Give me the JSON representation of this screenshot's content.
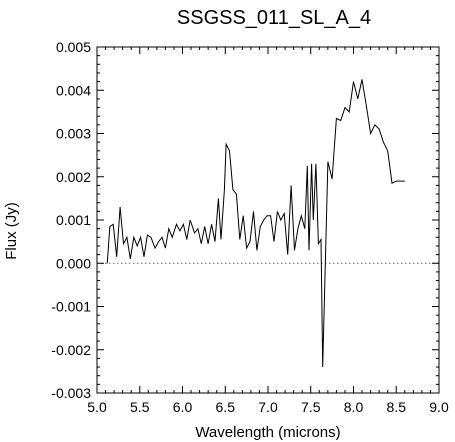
{
  "chart_data": {
    "type": "line",
    "title": "SSGSS_011_SL_A_4",
    "xlabel": "Wavelength (microns)",
    "ylabel": "Flux (Jy)",
    "xlim": [
      5.0,
      9.0
    ],
    "ylim": [
      -0.003,
      0.005
    ],
    "x_ticks": [
      "5.0",
      "5.5",
      "6.0",
      "6.5",
      "7.0",
      "7.5",
      "8.0",
      "8.5",
      "9.0"
    ],
    "y_ticks": [
      "0.005",
      "0.004",
      "0.003",
      "0.002",
      "0.001",
      "0.000",
      "-0.001",
      "-0.002",
      "-0.003"
    ],
    "zero_line": "dotted",
    "grid": false,
    "legend": "none",
    "line_color": "#000000",
    "series": [
      {
        "x": [
          5.12,
          5.15,
          5.19,
          5.23,
          5.27,
          5.31,
          5.35,
          5.39,
          5.43,
          5.47,
          5.51,
          5.55,
          5.59,
          5.63,
          5.68,
          5.72,
          5.76,
          5.8,
          5.84,
          5.88,
          5.93,
          5.97,
          6.01,
          6.05,
          6.09,
          6.14,
          6.18,
          6.22,
          6.26,
          6.3,
          6.34,
          6.38,
          6.42,
          6.45,
          6.49,
          6.51,
          6.55,
          6.59,
          6.63,
          6.67,
          6.71,
          6.75,
          6.79,
          6.83,
          6.87,
          6.91,
          6.95,
          6.99,
          7.03,
          7.07,
          7.11,
          7.15,
          7.19,
          7.23,
          7.27,
          7.31,
          7.35,
          7.39,
          7.43,
          7.46,
          7.48,
          7.51,
          7.53,
          7.56,
          7.59,
          7.62,
          7.64,
          7.7,
          7.75,
          7.8,
          7.85,
          7.9,
          7.95,
          8.0,
          8.05,
          8.1,
          8.15,
          8.2,
          8.25,
          8.3,
          8.35,
          8.4,
          8.45,
          8.5,
          8.55,
          8.6
        ],
        "y": [
          0.0,
          0.00085,
          0.0009,
          0.00015,
          0.0013,
          0.00045,
          0.0006,
          0.0001,
          0.0006,
          0.0004,
          0.0006,
          0.00015,
          0.00065,
          0.0006,
          0.00035,
          0.0005,
          0.0006,
          0.00035,
          0.0008,
          0.0006,
          0.0009,
          0.00075,
          0.0009,
          0.00055,
          0.001,
          0.0007,
          0.0008,
          0.00045,
          0.00085,
          0.00045,
          0.0009,
          0.0005,
          0.0015,
          0.00055,
          0.0017,
          0.00275,
          0.0026,
          0.0017,
          0.0016,
          0.00055,
          0.0011,
          0.00035,
          0.0005,
          0.0012,
          0.0003,
          0.00085,
          0.001,
          0.0011,
          0.0011,
          0.0005,
          0.0012,
          0.001,
          0.00115,
          0.0002,
          0.0018,
          0.0003,
          0.0008,
          0.0011,
          0.0008,
          0.00225,
          0.0003,
          0.0023,
          0.001,
          0.0023,
          0.00045,
          0.00055,
          -0.0024,
          0.00235,
          0.00195,
          0.00335,
          0.0033,
          0.0036,
          0.0035,
          0.0042,
          0.0038,
          0.00425,
          0.00365,
          0.003,
          0.0032,
          0.0031,
          0.0028,
          0.0026,
          0.00185,
          0.0019,
          0.0019,
          0.0019
        ]
      }
    ]
  }
}
